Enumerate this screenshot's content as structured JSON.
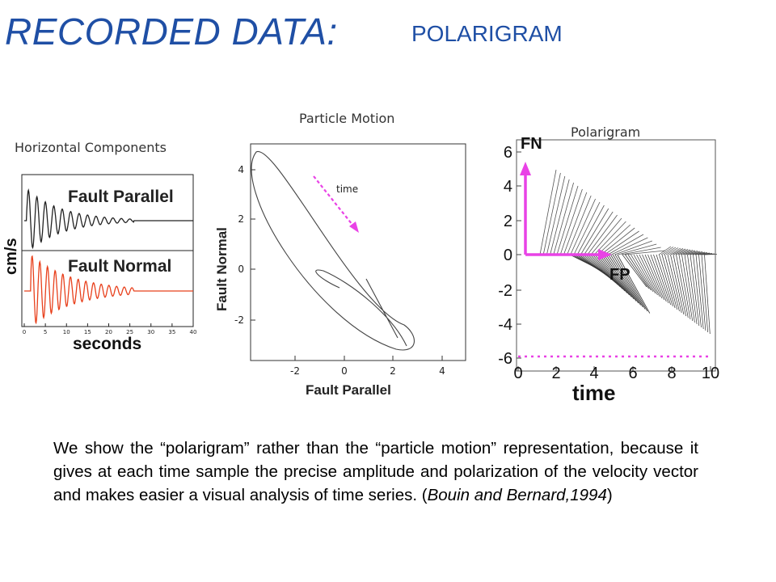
{
  "header": {
    "title": "RECORDED DATA:",
    "subtitle": "POLARIGRAM"
  },
  "captions": {
    "horizontal": "Horizontal Components",
    "particle": "Particle Motion",
    "polarigram": "Polarigram"
  },
  "colors": {
    "title": "#1f4fa5",
    "fault_normal_trace": "#e8401c",
    "magenta": "#e942e6"
  },
  "horizontal_panel": {
    "top_label": "Fault Parallel",
    "bottom_label": "Fault Normal",
    "ylabel": "cm/s",
    "xlabel": "seconds",
    "xticks": [
      "0",
      "5",
      "10",
      "15",
      "20",
      "25",
      "30",
      "35",
      "40"
    ]
  },
  "particle_panel": {
    "xlabel": "Fault Parallel",
    "ylabel": "Fault Normal",
    "xticks": [
      "-2",
      "0",
      "2",
      "4"
    ],
    "yticks": [
      "4",
      "2",
      "0",
      "-2"
    ],
    "arrow_label": "time"
  },
  "polarigram_panel": {
    "fn_label": "FN",
    "fp_label": "FP",
    "xlabel": "time",
    "xticks": [
      "0",
      "2",
      "4",
      "6",
      "8",
      "10"
    ],
    "yticks": [
      "6",
      "4",
      "2",
      "0",
      "-2",
      "-4",
      "-6"
    ]
  },
  "paragraph": {
    "text": "We show the “polarigram” rather than the “particle motion” representation, because it gives at each time sample the precise amplitude and polarization of the velocity vector and makes easier a visual analysis of time series. (",
    "citation": "Bouin and Bernard,1994",
    "close": ")"
  }
}
